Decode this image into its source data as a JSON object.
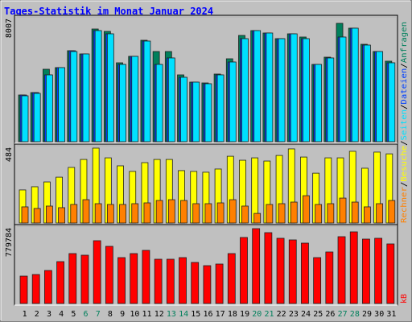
{
  "legend_separator": "/",
  "chart_data": [
    {
      "type": "bar",
      "title": "Tages-Statistik im Monat Januar 2024",
      "categories": [
        "1",
        "2",
        "3",
        "4",
        "5",
        "6",
        "7",
        "8",
        "9",
        "10",
        "11",
        "12",
        "13",
        "14",
        "15",
        "16",
        "17",
        "18",
        "19",
        "20",
        "21",
        "22",
        "23",
        "24",
        "25",
        "26",
        "27",
        "28",
        "29",
        "30",
        "31"
      ],
      "category_colors": [
        "#000000",
        "#000000",
        "#000000",
        "#000000",
        "#000000",
        "#00805c",
        "#00805c",
        "#000000",
        "#000000",
        "#000000",
        "#000000",
        "#000000",
        "#00805c",
        "#00805c",
        "#000000",
        "#000000",
        "#000000",
        "#000000",
        "#000000",
        "#00805c",
        "#00805c",
        "#000000",
        "#000000",
        "#000000",
        "#000000",
        "#000000",
        "#00805c",
        "#00805c",
        "#000000",
        "#000000",
        "#000000"
      ],
      "ylim": [
        0,
        8007
      ],
      "yticks": [
        8007
      ],
      "series": [
        {
          "name": "Anfragen",
          "color": "#00805c",
          "values": [
            2996,
            3151,
            4649,
            4753,
            5838,
            5631,
            7232,
            7077,
            5063,
            5476,
            6509,
            5786,
            5786,
            4288,
            3823,
            3771,
            4340,
            5321,
            6819,
            7129,
            6974,
            6612,
            6922,
            6716,
            4959,
            5424,
            7594,
            7284,
            6251,
            5786,
            5166
          ]
        },
        {
          "name": "Dateien",
          "color": "#0040ff",
          "values": [
            2996,
            3151,
            4288,
            4753,
            5838,
            5631,
            7129,
            6922,
            4959,
            5476,
            6457,
            4959,
            5373,
            4133,
            3823,
            3720,
            4288,
            5114,
            6612,
            7129,
            6974,
            6612,
            6922,
            6612,
            4959,
            5373,
            6716,
            7284,
            6199,
            5786,
            5063
          ]
        },
        {
          "name": "Seiten",
          "color": "#00e0ff",
          "values": [
            2945,
            3100,
            4288,
            4753,
            5786,
            5631,
            7129,
            6922,
            4959,
            5476,
            6457,
            4959,
            5373,
            4133,
            3823,
            3720,
            4288,
            5114,
            6612,
            7129,
            6974,
            6612,
            6922,
            6612,
            4959,
            5373,
            6716,
            7284,
            6199,
            5786,
            5063
          ]
        }
      ]
    },
    {
      "type": "bar",
      "ylim": [
        0,
        484
      ],
      "yticks": [
        484
      ],
      "series": [
        {
          "name": "Besuche",
          "color": "#ffff00",
          "values": [
            207,
            227,
            257,
            287,
            348,
            398,
            469,
            408,
            358,
            323,
            378,
            398,
            398,
            328,
            323,
            318,
            338,
            418,
            393,
            408,
            388,
            423,
            464,
            413,
            312,
            408,
            408,
            449,
            343,
            444,
            433
          ]
        },
        {
          "name": "Rechner",
          "color": "#ff8000",
          "values": [
            101,
            91,
            106,
            96,
            116,
            146,
            121,
            116,
            116,
            121,
            126,
            141,
            146,
            141,
            121,
            121,
            126,
            146,
            106,
            60,
            116,
            121,
            131,
            171,
            116,
            121,
            156,
            131,
            101,
            121,
            141
          ]
        }
      ]
    },
    {
      "type": "bar",
      "ylim": [
        0,
        779784
      ],
      "yticks": [
        779784
      ],
      "series": [
        {
          "name": "kB",
          "color": "#ff0000",
          "values": [
            276182,
            292428,
            333043,
            422396,
            503626,
            487380,
            633594,
            576733,
            463011,
            503626,
            536118,
            446765,
            446765,
            463011,
            414273,
            381781,
            398027,
            503626,
            666086,
            755439,
            714824,
            657963,
            641717,
            609225,
            463011,
            519872,
            674209,
            722947,
            649840,
            657963,
            601102
          ]
        }
      ]
    }
  ]
}
